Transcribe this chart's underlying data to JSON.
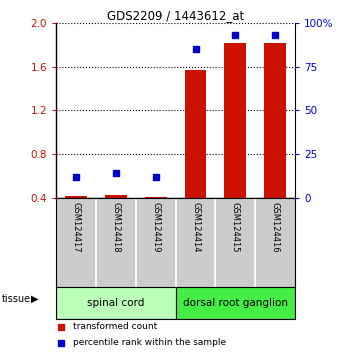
{
  "title": "GDS2209 / 1443612_at",
  "samples": [
    "GSM124417",
    "GSM124418",
    "GSM124419",
    "GSM124414",
    "GSM124415",
    "GSM124416"
  ],
  "transformed_counts": [
    0.42,
    0.43,
    0.41,
    1.57,
    1.82,
    1.82
  ],
  "percentile_ranks": [
    12,
    14,
    12,
    85,
    93,
    93
  ],
  "bar_color": "#cc1100",
  "dot_color": "#0000cc",
  "ylim_left": [
    0.4,
    2.0
  ],
  "ylim_right": [
    0,
    100
  ],
  "yticks_left": [
    0.4,
    0.8,
    1.2,
    1.6,
    2.0
  ],
  "yticks_right": [
    0,
    25,
    50,
    75,
    100
  ],
  "ytick_labels_right": [
    "0",
    "25",
    "50",
    "75",
    "100%"
  ],
  "groups": [
    {
      "label": "spinal cord",
      "indices": [
        0,
        1,
        2
      ],
      "color": "#bbffbb"
    },
    {
      "label": "dorsal root ganglion",
      "indices": [
        3,
        4,
        5
      ],
      "color": "#44ee44"
    }
  ],
  "tissue_label": "tissue",
  "legend_items": [
    {
      "label": "transformed count",
      "color": "#cc1100"
    },
    {
      "label": "percentile rank within the sample",
      "color": "#0000cc"
    }
  ],
  "bar_bottom": 0.4,
  "grid_color": "#000000",
  "background_color": "#ffffff",
  "sample_label_area_color": "#cccccc"
}
